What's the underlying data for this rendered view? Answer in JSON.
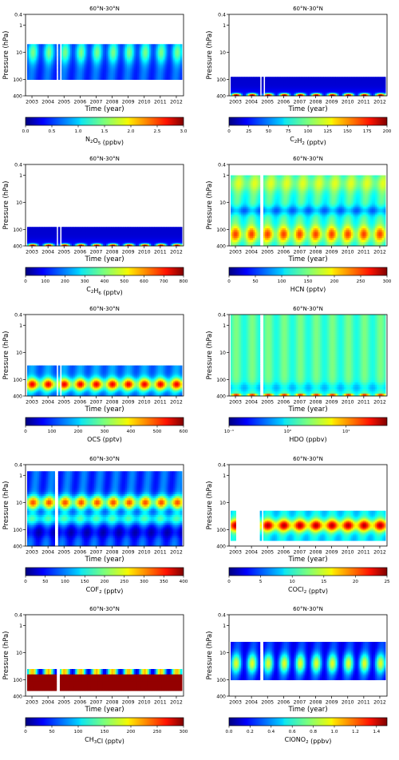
{
  "chart_data": [
    {
      "type": "heatmap",
      "title": "60°N-30°N",
      "ylabel": "Pressure (hPa)",
      "xlabel": "Time (year)",
      "yticks": [
        "0.4",
        "1",
        "10",
        "100",
        "400"
      ],
      "xticks": [
        "2003",
        "2004",
        "2005",
        "2006",
        "2007",
        "2008",
        "2009",
        "2010",
        "2011",
        "2012"
      ],
      "colorbar": {
        "label_main": "N",
        "label_sub1": "2",
        "label_mid": "O",
        "label_sub2": "5",
        "label_unit": " (ppbv)",
        "ticks": [
          "0.0",
          "0.5",
          "1.0",
          "1.5",
          "2.0",
          "2.5",
          "3.0"
        ],
        "range": [
          0,
          3.0
        ],
        "scale": "linear"
      },
      "field": {
        "ptop": 5,
        "pbot": 100,
        "gaps": [
          [
            2004.55,
            2004.62
          ],
          [
            2004.75,
            2004.85
          ]
        ],
        "lowshift": 0,
        "bg": 0.55,
        "peak": 0.15,
        "peakP": 10,
        "mode": "seasonal"
      }
    },
    {
      "type": "heatmap",
      "title": "60°N-30°N",
      "ylabel": "Pressure (hPa)",
      "xlabel": "Time (year)",
      "yticks": [
        "0.4",
        "1",
        "10",
        "100",
        "400"
      ],
      "xticks": [
        "2003",
        "2004",
        "2005",
        "2006",
        "2007",
        "2008",
        "2009",
        "2010",
        "2011",
        "2012"
      ],
      "colorbar": {
        "label_main": "C",
        "label_sub1": "2",
        "label_mid": "H",
        "label_sub2": "2",
        "label_unit": " (pptv)",
        "ticks": [
          "0",
          "25",
          "50",
          "75",
          "100",
          "125",
          "150",
          "175",
          "200"
        ],
        "range": [
          0,
          200
        ],
        "scale": "linear"
      },
      "field": {
        "ptop": 80,
        "pbot": 400,
        "gaps": [
          [
            2004.5,
            2004.6
          ],
          [
            2004.72,
            2004.8
          ]
        ],
        "lowshift": 0,
        "bg": 0.12,
        "peak": 0.75,
        "peakP": 380,
        "mode": "bottom"
      }
    },
    {
      "type": "heatmap",
      "title": "60°N-30°N",
      "ylabel": "Pressure (hPa)",
      "xlabel": "Time (year)",
      "yticks": [
        "0.4",
        "1",
        "10",
        "100",
        "400"
      ],
      "xticks": [
        "2003",
        "2004",
        "2005",
        "2006",
        "2007",
        "2008",
        "2009",
        "2010",
        "2011",
        "2012"
      ],
      "colorbar": {
        "label_main": "C",
        "label_sub1": "2",
        "label_mid": "H",
        "label_sub2": "6",
        "label_unit": " (pptv)",
        "ticks": [
          "0",
          "100",
          "200",
          "300",
          "400",
          "500",
          "600",
          "700",
          "800"
        ],
        "range": [
          0,
          800
        ],
        "scale": "linear"
      },
      "field": {
        "ptop": 80,
        "pbot": 400,
        "gaps": [
          [
            2004.55,
            2004.62
          ],
          [
            2004.75,
            2004.82
          ]
        ],
        "lowshift": 0,
        "bg": 0.1,
        "peak": 0.7,
        "peakP": 390,
        "mode": "bottom"
      }
    },
    {
      "type": "heatmap",
      "title": "60°N-30°N",
      "ylabel": "Pressure (hPa)",
      "xlabel": "Time (year)",
      "yticks": [
        "0.4",
        "1",
        "10",
        "100",
        "400"
      ],
      "xticks": [
        "2003",
        "2004",
        "2005",
        "2006",
        "2007",
        "2008",
        "2009",
        "2010",
        "2011",
        "2012"
      ],
      "colorbar": {
        "label_main": "HCN (pptv)",
        "label_sub1": "",
        "label_mid": "",
        "label_sub2": "",
        "label_unit": "",
        "ticks": [
          "0",
          "50",
          "100",
          "150",
          "200",
          "250",
          "300"
        ],
        "range": [
          0,
          300
        ],
        "scale": "linear"
      },
      "field": {
        "ptop": 1,
        "pbot": 400,
        "gaps": [
          [
            2004.5,
            2004.58
          ],
          [
            2004.68,
            2004.76
          ]
        ],
        "lowshift": 0,
        "bg": 0.45,
        "peak": 0.85,
        "peakP": 150,
        "mode": "hcn"
      }
    },
    {
      "type": "heatmap",
      "title": "60°N-30°N",
      "ylabel": "Pressure (hPa)",
      "xlabel": "Time (year)",
      "yticks": [
        "0.4",
        "1",
        "10",
        "100",
        "400"
      ],
      "xticks": [
        "2003",
        "2004",
        "2005",
        "2006",
        "2007",
        "2008",
        "2009",
        "2010",
        "2011",
        "2012"
      ],
      "colorbar": {
        "label_main": "OCS (pptv)",
        "label_sub1": "",
        "label_mid": "",
        "label_sub2": "",
        "label_unit": "",
        "ticks": [
          "0",
          "100",
          "200",
          "300",
          "400",
          "500",
          "600"
        ],
        "range": [
          0,
          600
        ],
        "scale": "linear"
      },
      "field": {
        "ptop": 30,
        "pbot": 400,
        "gaps": [
          [
            2004.55,
            2004.65
          ],
          [
            2004.78,
            2004.86
          ]
        ],
        "lowshift": 0,
        "bg": 0.2,
        "peak": 0.85,
        "peakP": 150,
        "mode": "ocs"
      }
    },
    {
      "type": "heatmap",
      "title": "60°N-30°N",
      "ylabel": "Pressure (hPa)",
      "xlabel": "Time (year)",
      "yticks": [
        "0.4",
        "1",
        "10",
        "100",
        "400"
      ],
      "xticks": [
        "2003",
        "2004",
        "2005",
        "2006",
        "2007",
        "2008",
        "2009",
        "2010",
        "2011",
        "2012"
      ],
      "colorbar": {
        "label_main": "HDO (ppbv)",
        "label_sub1": "",
        "label_mid": "",
        "label_sub2": "",
        "label_unit": "",
        "ticks": [
          "10⁻¹",
          "10⁰",
          "10¹"
        ],
        "range": [
          0.1,
          50
        ],
        "scale": "log"
      },
      "field": {
        "ptop": 0.4,
        "pbot": 400,
        "gaps": [
          [
            2004.5,
            2004.58
          ],
          [
            2004.66,
            2004.72
          ]
        ],
        "lowshift": 0,
        "bg": 0.4,
        "peak": 0.8,
        "peakP": 390,
        "mode": "hdo"
      }
    },
    {
      "type": "heatmap",
      "title": "60°N-30°N",
      "ylabel": "Pressure (hPa)",
      "xlabel": "Time (year)",
      "yticks": [
        "0.4",
        "1",
        "10",
        "100",
        "400"
      ],
      "xticks": [
        "2003",
        "2004",
        "2005",
        "2006",
        "2007",
        "2008",
        "2009",
        "2010",
        "2011",
        "2012"
      ],
      "colorbar": {
        "label_main": "COF",
        "label_sub1": "",
        "label_mid": "",
        "label_sub2": "2",
        "label_unit": "  (pptv)",
        "ticks": [
          "0",
          "50",
          "100",
          "150",
          "200",
          "250",
          "300",
          "350",
          "400"
        ],
        "range": [
          0,
          400
        ],
        "scale": "linear"
      },
      "field": {
        "ptop": 0.7,
        "pbot": 400,
        "gaps": [
          [
            2004.45,
            2004.65
          ]
        ],
        "lowshift": 0,
        "bg": 0.3,
        "peak": 0.82,
        "peakP": 10,
        "mode": "cof2"
      }
    },
    {
      "type": "heatmap",
      "title": "60°N-30°N",
      "ylabel": "Pressure (hPa)",
      "xlabel": "Time (year)",
      "yticks": [
        "0.4",
        "1",
        "10",
        "100",
        "400"
      ],
      "xticks": [
        "2003",
        "2004",
        "2005",
        "2006",
        "2007",
        "2008",
        "2009",
        "2010",
        "2011",
        "2012"
      ],
      "colorbar": {
        "label_main": "COCl",
        "label_sub1": "",
        "label_mid": "",
        "label_sub2": "2",
        "label_unit": " (pptv)",
        "ticks": [
          "0",
          "5",
          "10",
          "15",
          "20",
          "25"
        ],
        "range": [
          0,
          25
        ],
        "scale": "linear"
      },
      "field": {
        "ptop": 20,
        "pbot": 250,
        "gaps": [
          [
            2003.0,
            2004.55
          ],
          [
            2004.62,
            2004.72
          ]
        ],
        "lowshift": 0,
        "bg": 0.3,
        "peak": 0.85,
        "peakP": 70,
        "mode": "cocl2"
      }
    },
    {
      "type": "heatmap",
      "title": "60°N-30°N",
      "ylabel": "Pressure (hPa)",
      "xlabel": "Time (year)",
      "yticks": [
        "0.4",
        "1",
        "10",
        "100",
        "400"
      ],
      "xticks": [
        "2003",
        "2004",
        "2005",
        "2006",
        "2007",
        "2008",
        "2009",
        "2010",
        "2011",
        "2012"
      ],
      "colorbar": {
        "label_main": "CH",
        "label_sub1": "",
        "label_mid": "",
        "label_sub2": "3",
        "label_unit": "Cl (pptv)",
        "ticks": [
          "0",
          "50",
          "100",
          "150",
          "200",
          "250",
          "300"
        ],
        "range": [
          0,
          300
        ],
        "scale": "linear"
      },
      "field": {
        "ptop": 40,
        "pbot": 250,
        "gaps": [
          [
            2004.5,
            2004.6
          ],
          [
            2004.65,
            2004.72
          ]
        ],
        "lowshift": 0,
        "bg": 0.3,
        "peak": 0.97,
        "peakP": 150,
        "mode": "ch3cl"
      }
    },
    {
      "type": "heatmap",
      "title": "60°N-30°N",
      "ylabel": "Pressure (hPa)",
      "xlabel": "Time (year)",
      "yticks": [
        "0.4",
        "1",
        "10",
        "100",
        "400"
      ],
      "xticks": [
        "2003",
        "2004",
        "2005",
        "2006",
        "2007",
        "2008",
        "2009",
        "2010",
        "2011",
        "2012"
      ],
      "colorbar": {
        "label_main": "ClONO",
        "label_sub1": "",
        "label_mid": "",
        "label_sub2": "2",
        "label_unit": " (ppbv)",
        "ticks": [
          "0.0",
          "0.2",
          "0.4",
          "0.6",
          "0.8",
          "1.0",
          "1.2",
          "1.4"
        ],
        "range": [
          0,
          1.5
        ],
        "scale": "linear"
      },
      "field": {
        "ptop": 4,
        "pbot": 100,
        "gaps": [
          [
            2004.5,
            2004.6
          ],
          [
            2004.68,
            2004.74
          ]
        ],
        "lowshift": 0,
        "bg": 0.35,
        "peak": 0.6,
        "peakP": 25,
        "mode": "clono2"
      }
    }
  ]
}
